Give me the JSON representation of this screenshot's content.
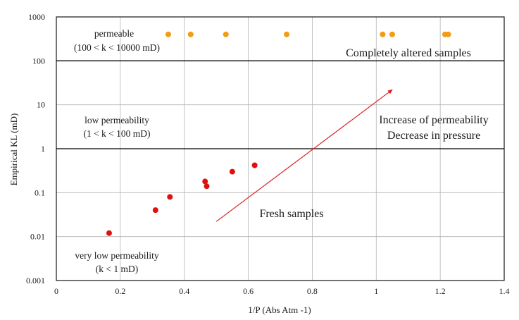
{
  "chart_data": {
    "type": "scatter",
    "title": "",
    "xlabel": "1/P (Abs Atm -1)",
    "ylabel": "Empirical KL  (mD)",
    "xlim": [
      0,
      1.4
    ],
    "ylim": [
      0.001,
      1000
    ],
    "yscale": "log",
    "grid": true,
    "x_ticks": [
      "0",
      "0.2",
      "0.4",
      "0.6",
      "0.8",
      "1",
      "1.2",
      "1.4"
    ],
    "y_ticks": [
      "0.001",
      "0.01",
      "0.1",
      "1",
      "10",
      "100",
      "1000"
    ],
    "series": [
      {
        "name": "Completely altered samples",
        "color": "#f39c12",
        "points": [
          {
            "x": 0.35,
            "y": 400
          },
          {
            "x": 0.42,
            "y": 400
          },
          {
            "x": 0.53,
            "y": 400
          },
          {
            "x": 0.72,
            "y": 400
          },
          {
            "x": 1.02,
            "y": 400
          },
          {
            "x": 1.05,
            "y": 400
          },
          {
            "x": 1.215,
            "y": 400
          },
          {
            "x": 1.225,
            "y": 400
          }
        ]
      },
      {
        "name": "Fresh samples",
        "color": "#dd1111",
        "points": [
          {
            "x": 0.165,
            "y": 0.012
          },
          {
            "x": 0.31,
            "y": 0.04
          },
          {
            "x": 0.355,
            "y": 0.08
          },
          {
            "x": 0.465,
            "y": 0.18
          },
          {
            "x": 0.47,
            "y": 0.14
          },
          {
            "x": 0.55,
            "y": 0.3
          },
          {
            "x": 0.62,
            "y": 0.42
          }
        ]
      }
    ],
    "thresholds": [
      1,
      100
    ],
    "regions": {
      "permeable": [
        "permeable",
        "(100 < k < 10000 mD)"
      ],
      "low": [
        "low permeability",
        "(1 < k < 100 mD)"
      ],
      "very_low": [
        "very low permeability",
        "(k < 1 mD)"
      ]
    },
    "annotations": {
      "altered": "Completely altered samples",
      "fresh": "Fresh samples",
      "trend": [
        "Increase of permeability",
        "Decrease in pressure"
      ]
    },
    "arrow": {
      "color": "#dd2222",
      "from": {
        "x": 0.5,
        "y": 0.022
      },
      "to": {
        "x": 1.05,
        "y": 22
      }
    }
  }
}
